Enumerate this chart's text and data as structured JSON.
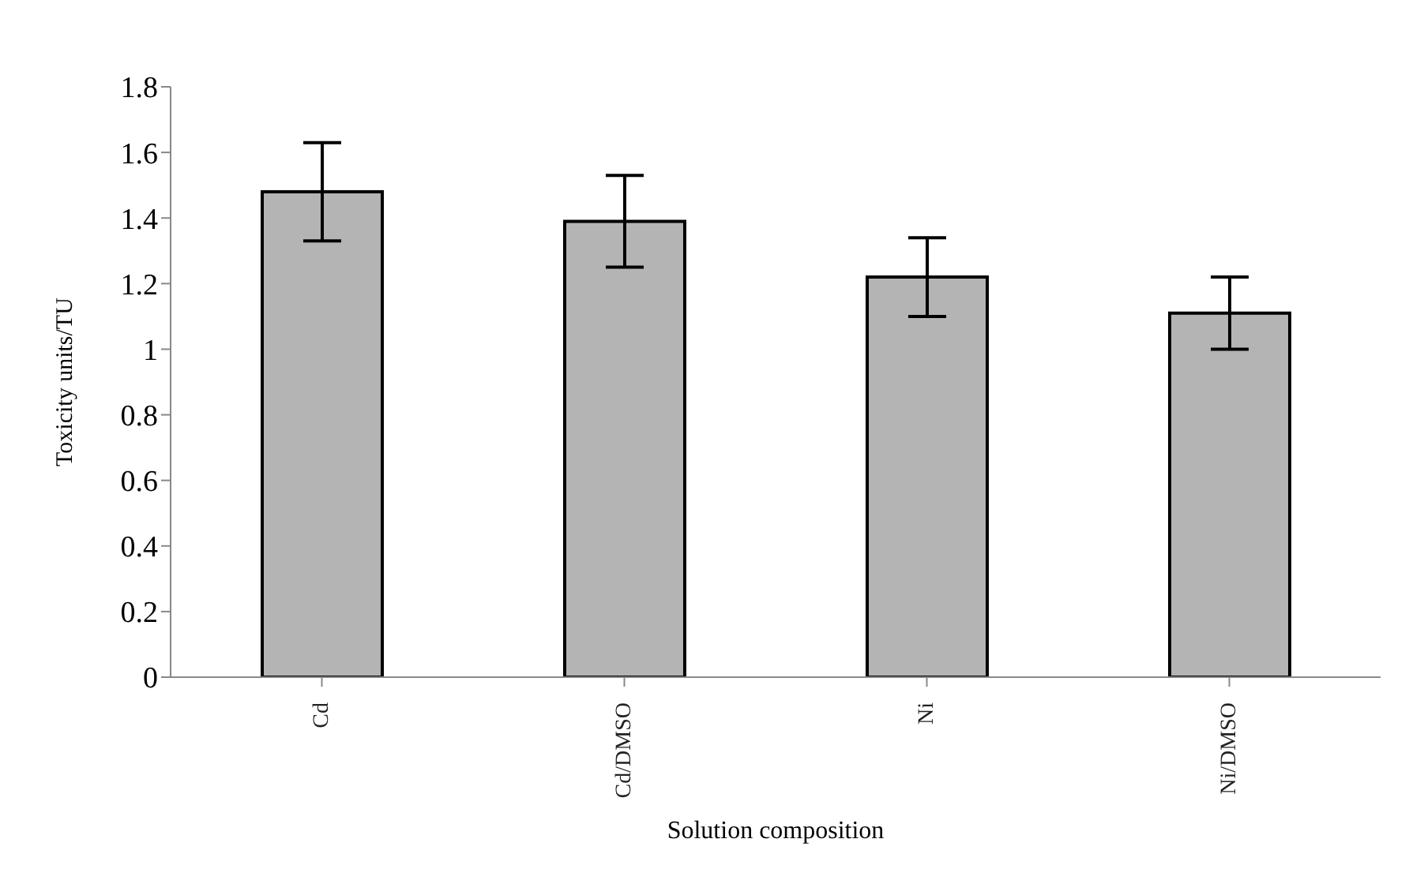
{
  "chart_data": {
    "type": "bar",
    "xlabel": "Solution composition",
    "ylabel": "Toxicity units/TU",
    "categories": [
      "Cd",
      "Cd/DMSO",
      "Ni",
      "Ni/DMSO"
    ],
    "values": [
      1.48,
      1.39,
      1.22,
      1.11
    ],
    "errors": [
      0.15,
      0.14,
      0.12,
      0.11
    ],
    "color": "#b4b4b4",
    "ylim": [
      0,
      1.8
    ],
    "yticks": [
      0,
      0.2,
      0.4,
      0.6,
      0.8,
      1,
      1.2,
      1.4,
      1.6,
      1.8
    ]
  }
}
